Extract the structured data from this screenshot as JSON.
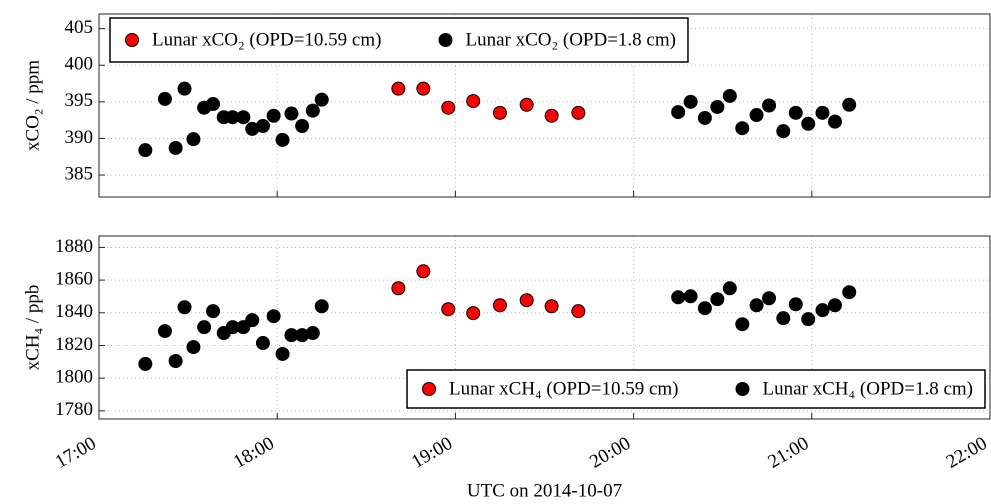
{
  "chart_data": [
    {
      "type": "scatter",
      "ylabel": "xCO₂ / ppm",
      "xlim": [
        17,
        22
      ],
      "xticks": [
        17,
        18,
        19,
        20,
        21,
        22
      ],
      "ylim": [
        382,
        407
      ],
      "yticks": [
        385,
        390,
        395,
        400,
        405
      ],
      "grid": true,
      "legend": "upper left",
      "series": [
        {
          "name": "Lunar xCO₂ (OPD=10.59 cm)",
          "color": "#ff0000",
          "x": [
            18.68,
            18.82,
            18.96,
            19.1,
            19.25,
            19.4,
            19.54,
            19.69
          ],
          "values": [
            396.8,
            396.8,
            394.2,
            395.1,
            393.5,
            394.6,
            393.1,
            393.5
          ]
        },
        {
          "name": "Lunar xCO₂ (OPD=1.8 cm)",
          "color": "#000000",
          "x": [
            17.26,
            17.37,
            17.43,
            17.48,
            17.53,
            17.59,
            17.64,
            17.7,
            17.75,
            17.81,
            17.86,
            17.92,
            17.98,
            18.03,
            18.08,
            18.14,
            18.2,
            18.25,
            20.25,
            20.32,
            20.4,
            20.47,
            20.54,
            20.61,
            20.69,
            20.76,
            20.84,
            20.91,
            20.98,
            21.06,
            21.13,
            21.21
          ],
          "values": [
            388.4,
            395.4,
            388.7,
            396.8,
            389.9,
            394.2,
            394.7,
            392.9,
            392.9,
            392.9,
            391.3,
            391.7,
            393.1,
            389.8,
            393.4,
            391.7,
            393.8,
            395.3,
            393.6,
            395.0,
            392.8,
            394.3,
            395.8,
            391.4,
            393.2,
            394.5,
            391.0,
            393.5,
            392.0,
            393.5,
            392.3,
            394.6
          ]
        }
      ]
    },
    {
      "type": "scatter",
      "ylabel": "xCH₄ / ppb",
      "xlabel": "UTC on 2014-10-07",
      "xlim": [
        17,
        22
      ],
      "xticks": [
        {
          "value": 17,
          "label": "17:00"
        },
        {
          "value": 18,
          "label": "18:00"
        },
        {
          "value": 19,
          "label": "19:00"
        },
        {
          "value": 20,
          "label": "20:00"
        },
        {
          "value": 21,
          "label": "21:00"
        },
        {
          "value": 22,
          "label": "22:00"
        }
      ],
      "ylim": [
        1775,
        1887
      ],
      "yticks": [
        1780,
        1800,
        1820,
        1840,
        1860,
        1880
      ],
      "grid": true,
      "legend": "lower right",
      "series": [
        {
          "name": "Lunar xCH₄ (OPD=10.59 cm)",
          "color": "#ff0000",
          "x": [
            18.68,
            18.82,
            18.96,
            19.1,
            19.25,
            19.4,
            19.54,
            19.69
          ],
          "values": [
            1855.0,
            1865.4,
            1842.2,
            1839.8,
            1844.6,
            1847.7,
            1844.0,
            1841.0
          ]
        },
        {
          "name": "Lunar xCH₄ (OPD=1.8 cm)",
          "color": "#000000",
          "x": [
            17.26,
            17.37,
            17.43,
            17.48,
            17.53,
            17.59,
            17.64,
            17.7,
            17.75,
            17.81,
            17.86,
            17.92,
            17.98,
            18.03,
            18.08,
            18.14,
            18.2,
            18.25,
            20.25,
            20.32,
            20.4,
            20.47,
            20.54,
            20.61,
            20.69,
            20.76,
            20.84,
            20.91,
            20.98,
            21.06,
            21.13,
            21.21
          ],
          "values": [
            1808.7,
            1828.8,
            1810.5,
            1843.4,
            1819.0,
            1831.2,
            1841.0,
            1827.6,
            1831.2,
            1831.2,
            1835.5,
            1821.5,
            1837.9,
            1814.8,
            1826.3,
            1826.3,
            1827.6,
            1844.0,
            1849.5,
            1850.1,
            1842.8,
            1848.3,
            1855.0,
            1833.0,
            1844.6,
            1848.9,
            1836.7,
            1845.2,
            1836.1,
            1841.6,
            1844.6,
            1852.6
          ]
        }
      ]
    }
  ]
}
